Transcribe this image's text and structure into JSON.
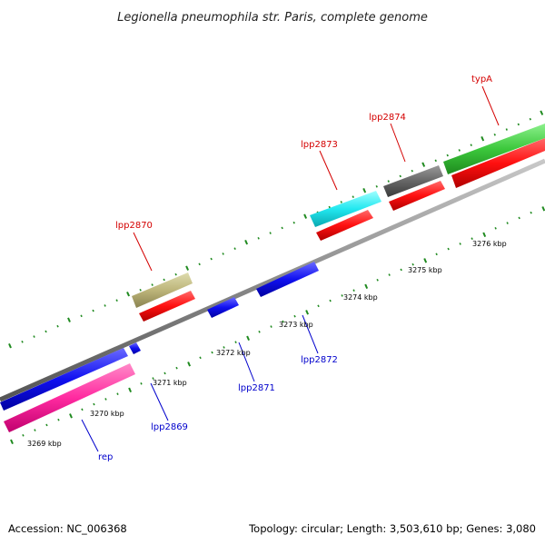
{
  "title": "Legionella pneumophila str. Paris, complete genome",
  "footer": {
    "accession": "Accession: NC_006368",
    "summary": "Topology: circular; Length: 3,503,610 bp; Genes: 3,080"
  },
  "colors": {
    "backbone": "#8a8a8a",
    "tick": "#1f8a1f",
    "label_forward": "#d40000",
    "label_reverse": "#0000cc",
    "cds_forward": "#ff1a1a",
    "cds_reverse": "#1a1aff"
  },
  "scale_labels": [
    "3269 kbp",
    "3270 kbp",
    "3271 kbp",
    "3272 kbp",
    "3273 kbp",
    "3274 kbp",
    "3275 kbp",
    "3276 kbp"
  ],
  "gene_labels": {
    "forward": [
      "lpp2870",
      "lpp2873",
      "lpp2874",
      "typA"
    ],
    "reverse": [
      "rep",
      "lpp2869",
      "lpp2871",
      "lpp2872"
    ]
  }
}
